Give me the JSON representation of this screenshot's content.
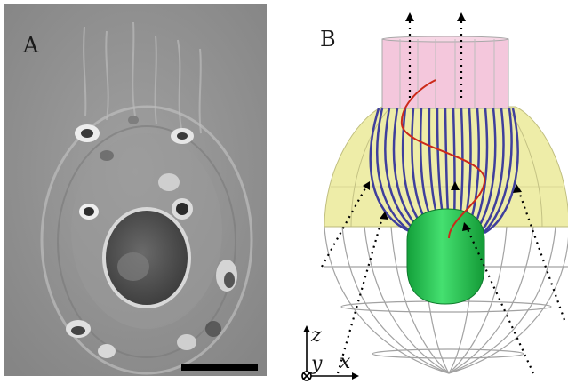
{
  "panels": [
    {
      "id": "A",
      "label": "A"
    },
    {
      "id": "B",
      "label": "B"
    }
  ],
  "axes": {
    "z": "z",
    "y": "y",
    "x": "x"
  },
  "colors": {
    "micrograph_bg": "#8f8f8f",
    "collar": "#f4c7dc",
    "shell_top": "#ecea9a",
    "cilia": "#3f3f9c",
    "nucleus_green": "#22c84f",
    "flagellum": "#cc2a1a",
    "wireframe": "#9a9a9a",
    "arrows": "#000000"
  },
  "scale_bar": {
    "present": true
  }
}
